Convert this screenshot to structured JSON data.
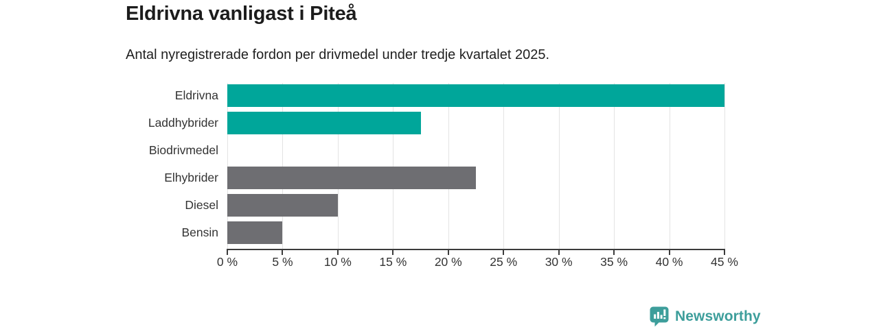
{
  "header": {
    "title": "Eldrivna vanligast i Piteå",
    "subtitle": "Antal nyregistrerade fordon per drivmedel under tredje kvartalet 2025."
  },
  "chart_data": {
    "type": "bar",
    "orientation": "horizontal",
    "title": "Eldrivna vanligast i Piteå",
    "subtitle": "Antal nyregistrerade fordon per drivmedel under tredje kvartalet 2025.",
    "categories": [
      "Eldrivna",
      "Laddhybrider",
      "Biodrivmedel",
      "Elhybrider",
      "Diesel",
      "Bensin"
    ],
    "values": [
      45,
      17.5,
      0,
      22.5,
      10,
      5
    ],
    "unit": "%",
    "xlabel": "",
    "ylabel": "",
    "xlim": [
      0,
      45
    ],
    "x_tick_values": [
      0,
      5,
      10,
      15,
      20,
      25,
      30,
      35,
      40,
      45
    ],
    "x_tick_labels": [
      "0 %",
      "5 %",
      "10 %",
      "15 %",
      "20 %",
      "25 %",
      "30 %",
      "35 %",
      "40 %",
      "45 %"
    ],
    "grid": true,
    "legend": "none",
    "bar_colors": [
      "#00a69a",
      "#00a69a",
      "#6e6e72",
      "#6e6e72",
      "#6e6e72",
      "#6e6e72"
    ]
  },
  "colors": {
    "accent_teal": "#00a69a",
    "bar_gray": "#6e6e72",
    "gridline": "#e3e3e3",
    "axis": "#3b3b3b",
    "title_text": "#1c1c1c",
    "label_text": "#333333",
    "logo_teal": "#3d9e9b"
  },
  "branding": {
    "logo_text": "Newsworthy",
    "logo_icon": "bar-chart-speech-bubble-icon"
  }
}
